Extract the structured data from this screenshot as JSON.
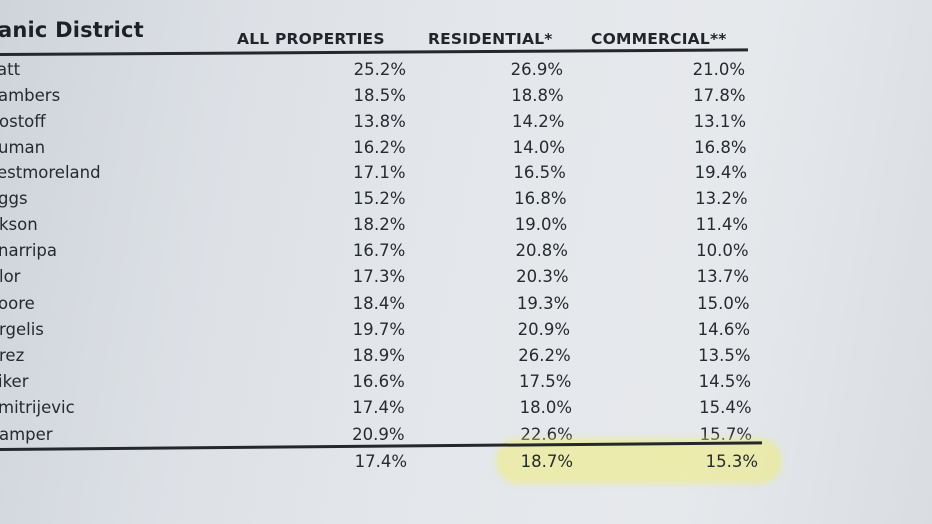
{
  "table": {
    "title": "anic District",
    "headers": {
      "all": "ALL PROPERTIES",
      "residential": "RESIDENTIAL*",
      "commercial": "COMMERCIAL**"
    },
    "rows": [
      {
        "name": "att",
        "all": "25.2%",
        "residential": "26.9%",
        "commercial": "21.0%"
      },
      {
        "name": "ambers",
        "all": "18.5%",
        "residential": "18.8%",
        "commercial": "17.8%"
      },
      {
        "name": "ostoff",
        "all": "13.8%",
        "residential": "14.2%",
        "commercial": "13.1%"
      },
      {
        "name": "uman",
        "all": "16.2%",
        "residential": "14.0%",
        "commercial": "16.8%"
      },
      {
        "name": "estmoreland",
        "all": "17.1%",
        "residential": "16.5%",
        "commercial": "19.4%"
      },
      {
        "name": "ggs",
        "all": "15.2%",
        "residential": "16.8%",
        "commercial": "13.2%"
      },
      {
        "name": "kson",
        "all": "18.2%",
        "residential": "19.0%",
        "commercial": "11.4%"
      },
      {
        "name": "narripa",
        "all": "16.7%",
        "residential": "20.8%",
        "commercial": "10.0%"
      },
      {
        "name": "lor",
        "all": "17.3%",
        "residential": "20.3%",
        "commercial": "13.7%"
      },
      {
        "name": "oore",
        "all": "18.4%",
        "residential": "19.3%",
        "commercial": "15.0%"
      },
      {
        "name": "rgelis",
        "all": "19.7%",
        "residential": "20.9%",
        "commercial": "14.6%"
      },
      {
        "name": "rez",
        "all": "18.9%",
        "residential": "26.2%",
        "commercial": "13.5%"
      },
      {
        "name": "iker",
        "all": "16.6%",
        "residential": "17.5%",
        "commercial": "14.5%"
      },
      {
        "name": "mitrijevic",
        "all": "17.4%",
        "residential": "18.0%",
        "commercial": "15.4%"
      },
      {
        "name": "amper",
        "all": "20.9%",
        "residential": "22.6%",
        "commercial": "15.7%"
      }
    ],
    "totals": {
      "all": "17.4%",
      "residential": "18.7%",
      "commercial": "15.3%"
    },
    "highlight_color": "#eeec78"
  }
}
